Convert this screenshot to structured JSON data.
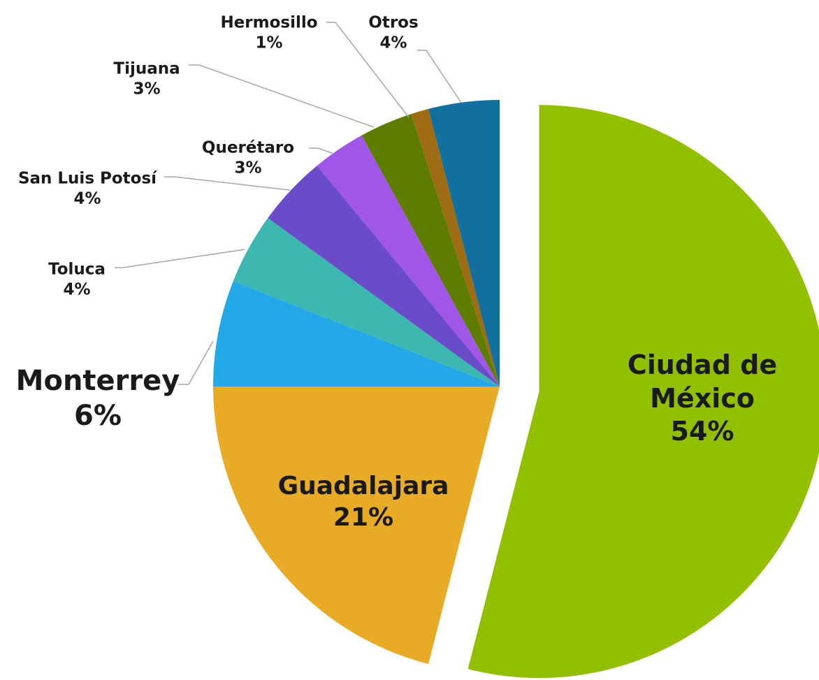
{
  "chart_data": {
    "type": "pie",
    "categories": [
      "Ciudad de México",
      "Guadalajara",
      "Monterrey",
      "Toluca",
      "San Luis Potosí",
      "Querétaro",
      "Tijuana",
      "Hermosillo",
      "Otros"
    ],
    "values": [
      54,
      21,
      6,
      4,
      4,
      3,
      3,
      1,
      4
    ],
    "value_labels": [
      "54%",
      "21%",
      "6%",
      "4%",
      "4%",
      "3%",
      "3%",
      "1%",
      "4%"
    ],
    "colors": [
      "#92c000",
      "#e8ab25",
      "#24a9e8",
      "#3db8b0",
      "#6a4cc8",
      "#a057e8",
      "#5e7d00",
      "#9e6d13",
      "#11709e"
    ]
  }
}
